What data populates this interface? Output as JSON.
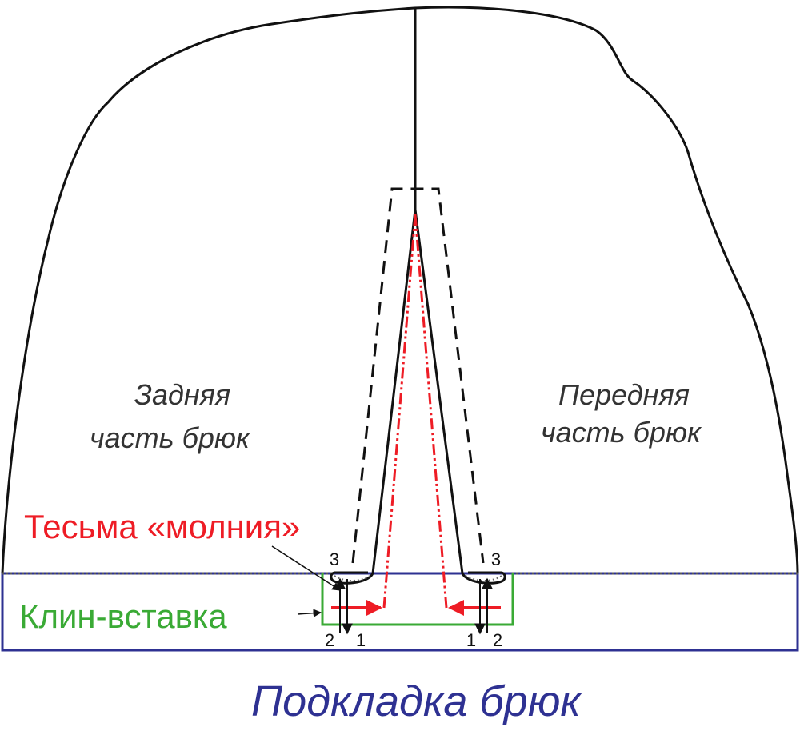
{
  "labels": {
    "back_line1": "Задняя",
    "back_line2": "часть брюк",
    "front_line1": "Передняя",
    "front_line2": "часть брюк",
    "zipper": "Тесьма «молния»",
    "gusset": "Клин-вставка",
    "lining": "Подкладка брюк"
  },
  "step_numbers": {
    "left_top": "3",
    "left_bottom_2": "2",
    "left_bottom_1": "1",
    "right_top": "3",
    "right_bottom_1": "1",
    "right_bottom_2": "2"
  },
  "colors": {
    "outline": "#111111",
    "zipper": "#ee1c25",
    "gusset": "#3aaa35",
    "lining": "#2e3192",
    "text": "#333333",
    "lining_text": "#2e3192"
  }
}
